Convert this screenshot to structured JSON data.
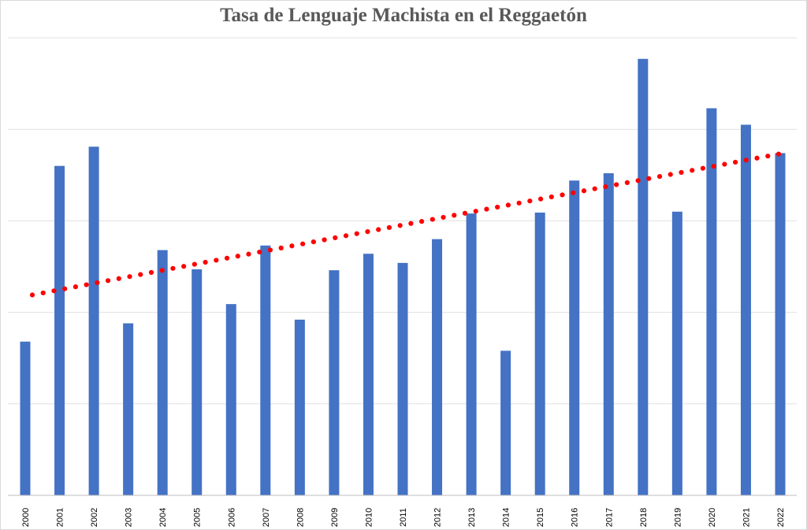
{
  "chart_data": {
    "type": "bar",
    "title": "Tasa de Lenguaje Machista en el Reggaetón",
    "categories": [
      "2000",
      "2001",
      "2002",
      "2003",
      "2004",
      "2005",
      "2006",
      "2007",
      "2008",
      "2009",
      "2010",
      "2011",
      "2012",
      "2013",
      "2014",
      "2015",
      "2016",
      "2017",
      "2018",
      "2019",
      "2020",
      "2021",
      "2022"
    ],
    "series": [
      {
        "values": [
          1.68,
          3.6,
          3.81,
          1.88,
          2.68,
          2.47,
          2.09,
          2.73,
          1.92,
          2.46,
          2.64,
          2.54,
          2.8,
          3.08,
          1.58,
          3.09,
          3.44,
          3.52,
          4.77,
          3.1,
          4.23,
          4.05,
          3.74
        ],
        "color": "#4472c4"
      }
    ],
    "trendline": {
      "type": "linear",
      "start": 2.19,
      "end": 3.73,
      "color": "#ff0000",
      "style": "dotted"
    },
    "ylim": [
      0,
      5
    ],
    "gridlines": true,
    "y_tick_labels_shown": false,
    "x_tick_rotation": "vertical"
  }
}
